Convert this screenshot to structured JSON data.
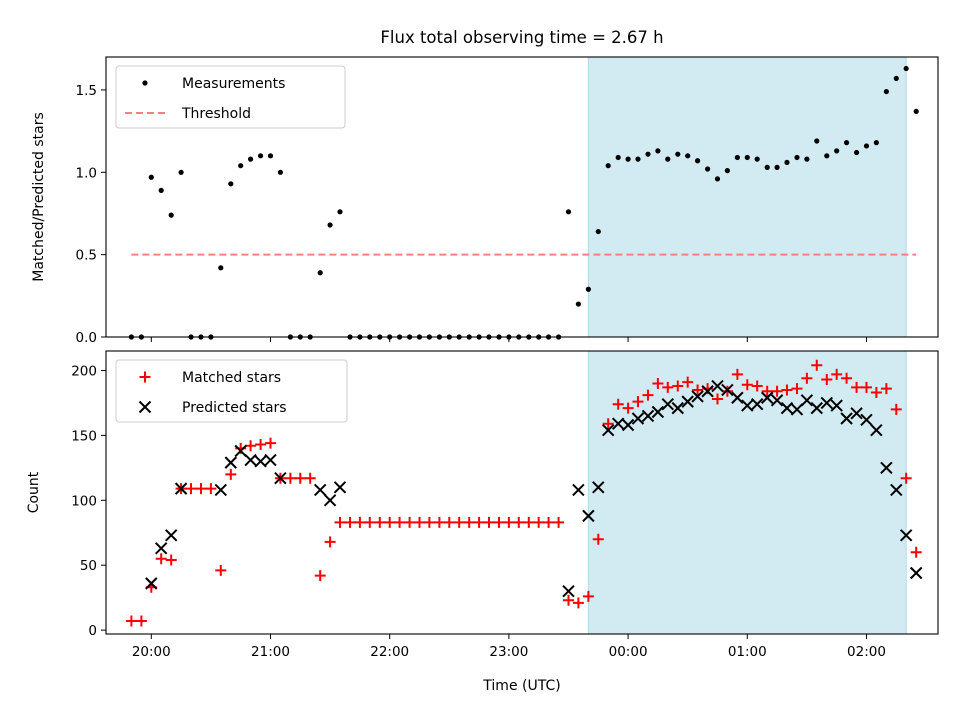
{
  "chart_data": {
    "title": "Flux total observing time = 2.67 h",
    "xlabel": "Time (UTC)",
    "x_unit": "hours UTC (values past 24 are after midnight)",
    "xlim": [
      19.62,
      26.6
    ],
    "xticks": [
      20,
      21,
      22,
      23,
      24,
      25,
      26
    ],
    "xtick_labels": [
      "20:00",
      "21:00",
      "22:00",
      "23:00",
      "00:00",
      "01:00",
      "02:00"
    ],
    "shaded_interval": [
      23.667,
      26.333
    ],
    "shade_color": "#add8e6",
    "panels": [
      {
        "type": "scatter",
        "ylabel": "Matched/Predicted stars",
        "ylim": [
          0,
          1.7
        ],
        "yticks": [
          0.0,
          0.5,
          1.0,
          1.5
        ],
        "ytick_labels": [
          "0.0",
          "0.5",
          "1.0",
          "1.5"
        ],
        "legend_position": "top-left",
        "series": [
          {
            "name": "Measurements",
            "marker": "dot",
            "color": "#000000",
            "points": [
              [
                19.833,
                0
              ],
              [
                19.917,
                0
              ],
              [
                20.0,
                0.97
              ],
              [
                20.083,
                0.89
              ],
              [
                20.167,
                0.74
              ],
              [
                20.25,
                1.0
              ],
              [
                20.333,
                0
              ],
              [
                20.417,
                0
              ],
              [
                20.5,
                0
              ],
              [
                20.583,
                0.42
              ],
              [
                20.667,
                0.93
              ],
              [
                20.75,
                1.04
              ],
              [
                20.833,
                1.08
              ],
              [
                20.917,
                1.1
              ],
              [
                21.0,
                1.1
              ],
              [
                21.083,
                1.0
              ],
              [
                21.167,
                0
              ],
              [
                21.25,
                0
              ],
              [
                21.333,
                0
              ],
              [
                21.417,
                0.39
              ],
              [
                21.5,
                0.68
              ],
              [
                21.583,
                0.76
              ],
              [
                21.667,
                0
              ],
              [
                21.75,
                0
              ],
              [
                21.833,
                0
              ],
              [
                21.917,
                0
              ],
              [
                22.0,
                0
              ],
              [
                22.083,
                0
              ],
              [
                22.167,
                0
              ],
              [
                22.25,
                0
              ],
              [
                22.333,
                0
              ],
              [
                22.417,
                0
              ],
              [
                22.5,
                0
              ],
              [
                22.583,
                0
              ],
              [
                22.667,
                0
              ],
              [
                22.75,
                0
              ],
              [
                22.833,
                0
              ],
              [
                22.917,
                0
              ],
              [
                23.0,
                0
              ],
              [
                23.083,
                0
              ],
              [
                23.167,
                0
              ],
              [
                23.25,
                0
              ],
              [
                23.333,
                0
              ],
              [
                23.417,
                0
              ],
              [
                23.5,
                0.76
              ],
              [
                23.583,
                0.2
              ],
              [
                23.667,
                0.29
              ],
              [
                23.75,
                0.64
              ],
              [
                23.833,
                1.04
              ],
              [
                23.917,
                1.09
              ],
              [
                24.0,
                1.08
              ],
              [
                24.083,
                1.08
              ],
              [
                24.167,
                1.11
              ],
              [
                24.25,
                1.13
              ],
              [
                24.333,
                1.08
              ],
              [
                24.417,
                1.11
              ],
              [
                24.5,
                1.1
              ],
              [
                24.583,
                1.07
              ],
              [
                24.667,
                1.02
              ],
              [
                24.75,
                0.96
              ],
              [
                24.833,
                1.01
              ],
              [
                24.917,
                1.09
              ],
              [
                25.0,
                1.09
              ],
              [
                25.083,
                1.08
              ],
              [
                25.167,
                1.03
              ],
              [
                25.25,
                1.03
              ],
              [
                25.333,
                1.06
              ],
              [
                25.417,
                1.09
              ],
              [
                25.5,
                1.08
              ],
              [
                25.583,
                1.19
              ],
              [
                25.667,
                1.1
              ],
              [
                25.75,
                1.13
              ],
              [
                25.833,
                1.18
              ],
              [
                25.917,
                1.12
              ],
              [
                26.0,
                1.16
              ],
              [
                26.083,
                1.18
              ],
              [
                26.167,
                1.49
              ],
              [
                26.25,
                1.57
              ],
              [
                26.333,
                1.63
              ],
              [
                26.417,
                1.37
              ]
            ]
          },
          {
            "name": "Threshold",
            "marker": "dashed-line",
            "color": "#ff7f7f",
            "points": [
              [
                19.833,
                0.5
              ],
              [
                26.417,
                0.5
              ]
            ]
          }
        ]
      },
      {
        "type": "scatter",
        "ylabel": "Count",
        "ylim": [
          -3,
          215
        ],
        "yticks": [
          0,
          50,
          100,
          150,
          200
        ],
        "ytick_labels": [
          "0",
          "50",
          "100",
          "150",
          "200"
        ],
        "legend_position": "top-left",
        "series": [
          {
            "name": "Matched stars",
            "marker": "plus",
            "color": "#ff0000",
            "points": [
              [
                19.833,
                7
              ],
              [
                19.917,
                7
              ],
              [
                20.0,
                33
              ],
              [
                20.083,
                55
              ],
              [
                20.167,
                54
              ],
              [
                20.25,
                109
              ],
              [
                20.333,
                109
              ],
              [
                20.417,
                109
              ],
              [
                20.5,
                109
              ],
              [
                20.583,
                46
              ],
              [
                20.667,
                120
              ],
              [
                20.75,
                140
              ],
              [
                20.833,
                142
              ],
              [
                20.917,
                143
              ],
              [
                21.0,
                144
              ],
              [
                21.083,
                117
              ],
              [
                21.167,
                117
              ],
              [
                21.25,
                117
              ],
              [
                21.333,
                117
              ],
              [
                21.417,
                42
              ],
              [
                21.5,
                68
              ],
              [
                21.583,
                83
              ],
              [
                21.667,
                83
              ],
              [
                21.75,
                83
              ],
              [
                21.833,
                83
              ],
              [
                21.917,
                83
              ],
              [
                22.0,
                83
              ],
              [
                22.083,
                83
              ],
              [
                22.167,
                83
              ],
              [
                22.25,
                83
              ],
              [
                22.333,
                83
              ],
              [
                22.417,
                83
              ],
              [
                22.5,
                83
              ],
              [
                22.583,
                83
              ],
              [
                22.667,
                83
              ],
              [
                22.75,
                83
              ],
              [
                22.833,
                83
              ],
              [
                22.917,
                83
              ],
              [
                23.0,
                83
              ],
              [
                23.083,
                83
              ],
              [
                23.167,
                83
              ],
              [
                23.25,
                83
              ],
              [
                23.333,
                83
              ],
              [
                23.417,
                83
              ],
              [
                23.5,
                23
              ],
              [
                23.583,
                21
              ],
              [
                23.667,
                26
              ],
              [
                23.75,
                70
              ],
              [
                23.833,
                159
              ],
              [
                23.917,
                174
              ],
              [
                24.0,
                171
              ],
              [
                24.083,
                176
              ],
              [
                24.167,
                181
              ],
              [
                24.25,
                190
              ],
              [
                24.333,
                187
              ],
              [
                24.417,
                188
              ],
              [
                24.5,
                191
              ],
              [
                24.583,
                185
              ],
              [
                24.667,
                186
              ],
              [
                24.75,
                178
              ],
              [
                24.833,
                184
              ],
              [
                24.917,
                197
              ],
              [
                25.0,
                189
              ],
              [
                25.083,
                188
              ],
              [
                25.167,
                184
              ],
              [
                25.25,
                184
              ],
              [
                25.333,
                185
              ],
              [
                25.417,
                186
              ],
              [
                25.5,
                194
              ],
              [
                25.583,
                204
              ],
              [
                25.667,
                193
              ],
              [
                25.75,
                197
              ],
              [
                25.833,
                194
              ],
              [
                25.917,
                187
              ],
              [
                26.0,
                187
              ],
              [
                26.083,
                183
              ],
              [
                26.167,
                186
              ],
              [
                26.25,
                170
              ],
              [
                26.333,
                117
              ],
              [
                26.417,
                60
              ]
            ]
          },
          {
            "name": "Predicted stars",
            "marker": "x",
            "color": "#000000",
            "points": [
              [
                20.0,
                36
              ],
              [
                20.083,
                63
              ],
              [
                20.167,
                73
              ],
              [
                20.25,
                109
              ],
              [
                20.583,
                108
              ],
              [
                20.667,
                129
              ],
              [
                20.75,
                138
              ],
              [
                20.833,
                131
              ],
              [
                20.917,
                130
              ],
              [
                21.0,
                131
              ],
              [
                21.083,
                117
              ],
              [
                21.417,
                108
              ],
              [
                21.5,
                100
              ],
              [
                21.583,
                110
              ],
              [
                23.5,
                30
              ],
              [
                23.583,
                108
              ],
              [
                23.667,
                88
              ],
              [
                23.75,
                110
              ],
              [
                23.833,
                154
              ],
              [
                23.917,
                159
              ],
              [
                24.0,
                158
              ],
              [
                24.083,
                163
              ],
              [
                24.167,
                165
              ],
              [
                24.25,
                168
              ],
              [
                24.333,
                174
              ],
              [
                24.417,
                171
              ],
              [
                24.5,
                176
              ],
              [
                24.583,
                180
              ],
              [
                24.667,
                184
              ],
              [
                24.75,
                188
              ],
              [
                24.833,
                185
              ],
              [
                24.917,
                179
              ],
              [
                25.0,
                173
              ],
              [
                25.083,
                174
              ],
              [
                25.167,
                179
              ],
              [
                25.25,
                177
              ],
              [
                25.333,
                171
              ],
              [
                25.417,
                170
              ],
              [
                25.5,
                177
              ],
              [
                25.583,
                171
              ],
              [
                25.667,
                175
              ],
              [
                25.75,
                173
              ],
              [
                25.833,
                163
              ],
              [
                25.917,
                167
              ],
              [
                26.0,
                162
              ],
              [
                26.083,
                154
              ],
              [
                26.167,
                125
              ],
              [
                26.25,
                108
              ],
              [
                26.333,
                73
              ],
              [
                26.417,
                44
              ]
            ]
          }
        ]
      }
    ]
  }
}
